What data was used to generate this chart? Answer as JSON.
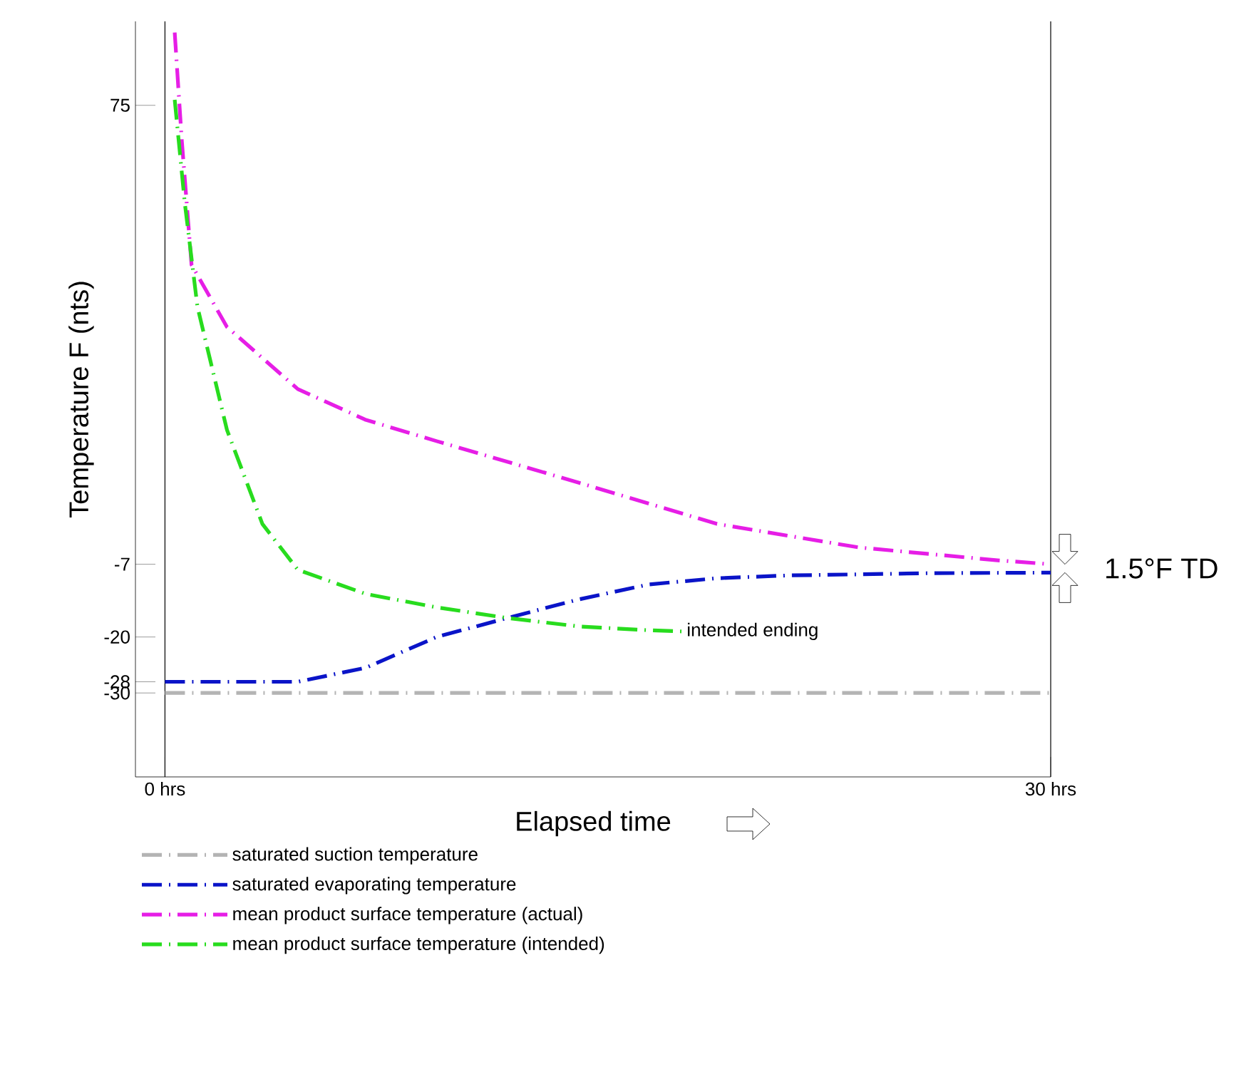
{
  "chart_data": {
    "type": "line",
    "xlabel": "Elapsed time",
    "ylabel": "Temperature F (nts)",
    "xlim": [
      -1,
      30
    ],
    "ylim": [
      -45,
      90
    ],
    "xticks": [
      {
        "value": 0,
        "label": "0 hrs"
      },
      {
        "value": 30,
        "label": "30 hrs"
      }
    ],
    "yticks": [
      -30,
      -28,
      -20,
      -7,
      75
    ],
    "grid": "x",
    "legend": "bottom",
    "line_style": "dashed",
    "marker": "none",
    "annotations": [
      {
        "text": "intended ending",
        "x": 17.5,
        "y": -19
      },
      {
        "text": "1.5°F TD",
        "x": 30,
        "y": -7.75
      }
    ],
    "series": [
      {
        "name": "saturated suction temperature",
        "color": "#b4b4b4",
        "x": [
          0,
          30
        ],
        "values": [
          -30,
          -30
        ]
      },
      {
        "name": "saturated evaporating temperature",
        "color": "#0a14c8",
        "x": [
          0,
          4.5,
          6.8,
          9.2,
          11.6,
          14,
          16.4,
          18.7,
          21.1,
          23.5,
          25.9,
          30
        ],
        "values": [
          -28,
          -28,
          -25.5,
          -20,
          -16.6,
          -13.3,
          -10.6,
          -9.5,
          -9,
          -8.8,
          -8.6,
          -8.5
        ]
      },
      {
        "name": "mean product surface temperature (actual)",
        "color": "#e61ee6",
        "x": [
          0.33,
          0.57,
          0.9,
          2.1,
          4.5,
          6.8,
          9.2,
          14,
          18.7,
          23.5,
          28.2,
          30
        ],
        "values": [
          88,
          68.7,
          46.5,
          35.4,
          24.3,
          18.8,
          15,
          7.6,
          0.2,
          -4,
          -6.3,
          -7
        ]
      },
      {
        "name": "mean product surface temperature (intended)",
        "color": "#28dc1e",
        "x": [
          0.33,
          0.67,
          1.1,
          2.1,
          3.3,
          4.5,
          6.8,
          9.2,
          11.6,
          14,
          16.4,
          17.5
        ],
        "values": [
          76,
          57.6,
          39,
          17,
          0.2,
          -8,
          -12.3,
          -14.7,
          -16.6,
          -18.1,
          -18.8,
          -19
        ]
      }
    ]
  }
}
